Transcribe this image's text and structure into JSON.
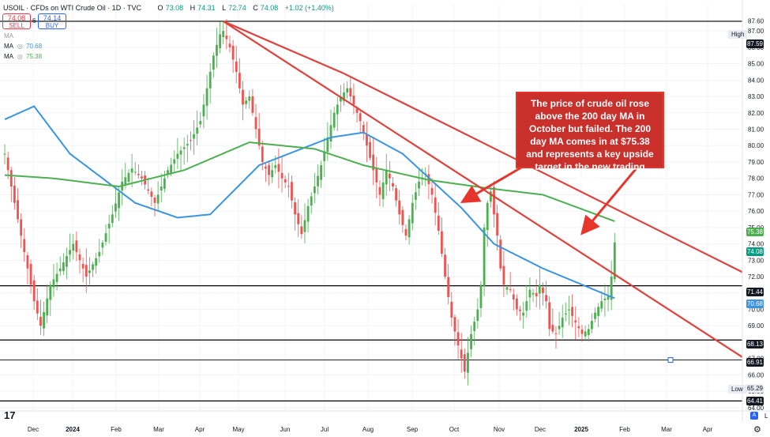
{
  "header": {
    "symbol": "USOIL · CFDs on WTI Crude Oil · 1D · TVC",
    "open_label": "O",
    "open": "73.08",
    "high_label": "H",
    "high": "74.31",
    "low_label": "L",
    "low": "72.74",
    "close_label": "C",
    "close": "74.08",
    "change": "+1.02 (+1.40%)"
  },
  "trade": {
    "sell_price": "74.08",
    "sell_label": "SELL",
    "spread": "6",
    "buy_price": "74.14",
    "buy_label": "BUY"
  },
  "indicators": [
    {
      "label": "MA",
      "value": ""
    },
    {
      "label": "MA",
      "value": "70.68"
    },
    {
      "label": "MA",
      "value": "75.38"
    }
  ],
  "colors": {
    "up": "#26a69a",
    "up_candle": "#4caf50",
    "down": "#ef5350",
    "ma_blue": "#3b94e0",
    "ma_green": "#4caf50",
    "trendline": "#e0413a",
    "level": "#000000",
    "callout_bg": "#c9302c"
  },
  "annotation": {
    "text": "The price of crude oil rose above the 200 day MA in October but failed. The 200 day MA comes in at $75.38 and represents a key upside target in the new trading week."
  },
  "price_tags": {
    "high_label": "High",
    "high_value": "87.59",
    "low_label": "Low",
    "low_value": "65.29",
    "levels": [
      "87.59",
      "71.44",
      "68.13",
      "66.91",
      "64.41"
    ],
    "last_price": "74.08",
    "ma_green_value": "75.38",
    "ma_blue_value": "70.68"
  },
  "chart_data": {
    "type": "candlestick",
    "symbol": "USOIL",
    "timeframe": "1D",
    "y_ticks": [
      64.0,
      65.0,
      66.0,
      67.0,
      68.0,
      69.0,
      70.0,
      71.0,
      72.0,
      73.0,
      74.0,
      75.0,
      76.0,
      77.0,
      78.0,
      79.0,
      80.0,
      81.0,
      82.0,
      83.0,
      84.0,
      85.0,
      86.0,
      87.0,
      87.6
    ],
    "x_labels": [
      "Dec",
      "2024",
      "Feb",
      "Mar",
      "Apr",
      "May",
      "Jun",
      "Jul",
      "Aug",
      "Sep",
      "Oct",
      "Nov",
      "Dec",
      "2025",
      "Feb",
      "Mar",
      "Apr"
    ],
    "ylim": [
      63.8,
      88.6
    ],
    "horizontal_levels": [
      87.59,
      71.44,
      68.13,
      66.91,
      64.41
    ],
    "high": 87.59,
    "low": 65.29,
    "last": 74.08,
    "ma_values": {
      "blue": 70.68,
      "green": 75.38
    },
    "price_path": [
      [
        0,
        79.5
      ],
      [
        3,
        76.5
      ],
      [
        6,
        73.5
      ],
      [
        9,
        70.5
      ],
      [
        11,
        69.0
      ],
      [
        14,
        71.5
      ],
      [
        17,
        72.5
      ],
      [
        21,
        74.0
      ],
      [
        25,
        72.0
      ],
      [
        29,
        73.5
      ],
      [
        33,
        75.8
      ],
      [
        36,
        77.8
      ],
      [
        39,
        78.6
      ],
      [
        42,
        78.0
      ],
      [
        46,
        76.5
      ],
      [
        50,
        78.5
      ],
      [
        53,
        79.5
      ],
      [
        57,
        80.3
      ],
      [
        60,
        81.5
      ],
      [
        62,
        83.5
      ],
      [
        64,
        85.5
      ],
      [
        66,
        86.8
      ],
      [
        67,
        87.0
      ],
      [
        69,
        86.0
      ],
      [
        71,
        84.5
      ],
      [
        73,
        82.5
      ],
      [
        75,
        83.0
      ],
      [
        77,
        81.0
      ],
      [
        79,
        79.0
      ],
      [
        81,
        78.2
      ],
      [
        83,
        78.8
      ],
      [
        85,
        78.0
      ],
      [
        87,
        77.5
      ],
      [
        89,
        75.8
      ],
      [
        91,
        74.6
      ],
      [
        93,
        76.3
      ],
      [
        95,
        77.5
      ],
      [
        97,
        78.8
      ],
      [
        99,
        80.5
      ],
      [
        101,
        82.0
      ],
      [
        103,
        83.0
      ],
      [
        105,
        83.5
      ],
      [
        107,
        82.5
      ],
      [
        109,
        81.5
      ],
      [
        111,
        80.0
      ],
      [
        113,
        78.5
      ],
      [
        115,
        77.0
      ],
      [
        117,
        78.5
      ],
      [
        119,
        77.5
      ],
      [
        121,
        75.8
      ],
      [
        123,
        74.5
      ],
      [
        125,
        76.5
      ],
      [
        127,
        77.8
      ],
      [
        129,
        78.3
      ],
      [
        131,
        77.0
      ],
      [
        133,
        74.8
      ],
      [
        135,
        72.0
      ],
      [
        137,
        69.5
      ],
      [
        139,
        67.8
      ],
      [
        141,
        66.2
      ],
      [
        143,
        68.5
      ],
      [
        145,
        70.0
      ],
      [
        146,
        71.5
      ],
      [
        147,
        75.0
      ],
      [
        148,
        76.5
      ],
      [
        149,
        77.2
      ],
      [
        150,
        75.8
      ],
      [
        151,
        74.5
      ],
      [
        152,
        72.5
      ],
      [
        153,
        71.5
      ],
      [
        155,
        71.2
      ],
      [
        157,
        70.0
      ],
      [
        159,
        69.8
      ],
      [
        161,
        71.2
      ],
      [
        163,
        70.8
      ],
      [
        164,
        71.5
      ],
      [
        166,
        70.5
      ],
      [
        167,
        68.8
      ],
      [
        169,
        68.5
      ],
      [
        171,
        69.5
      ],
      [
        173,
        70.0
      ],
      [
        175,
        69.2
      ],
      [
        177,
        68.5
      ],
      [
        179,
        68.8
      ],
      [
        181,
        69.8
      ],
      [
        183,
        70.5
      ],
      [
        185,
        70.8
      ],
      [
        186,
        72.0
      ],
      [
        187,
        74.08
      ]
    ],
    "ma_blue_path": [
      [
        0,
        81.6
      ],
      [
        9,
        82.4
      ],
      [
        20,
        79.5
      ],
      [
        40,
        76.5
      ],
      [
        53,
        75.6
      ],
      [
        63,
        75.8
      ],
      [
        78,
        78.8
      ],
      [
        100,
        80.5
      ],
      [
        110,
        80.8
      ],
      [
        122,
        79.5
      ],
      [
        140,
        76.2
      ],
      [
        150,
        74.0
      ],
      [
        165,
        72.5
      ],
      [
        187,
        70.68
      ]
    ],
    "ma_green_path": [
      [
        0,
        78.2
      ],
      [
        15,
        78.0
      ],
      [
        35,
        77.5
      ],
      [
        55,
        78.5
      ],
      [
        75,
        80.2
      ],
      [
        95,
        79.8
      ],
      [
        110,
        78.8
      ],
      [
        130,
        77.9
      ],
      [
        148,
        77.4
      ],
      [
        165,
        77.0
      ],
      [
        187,
        75.38
      ]
    ],
    "trendlines": [
      [
        [
          67,
          87.59
        ],
        [
          240,
          65.3
        ]
      ],
      [
        [
          104,
          84.4
        ],
        [
          240,
          70.9
        ]
      ],
      [
        [
          67,
          87.59
        ],
        [
          104,
          84.4
        ]
      ]
    ]
  }
}
